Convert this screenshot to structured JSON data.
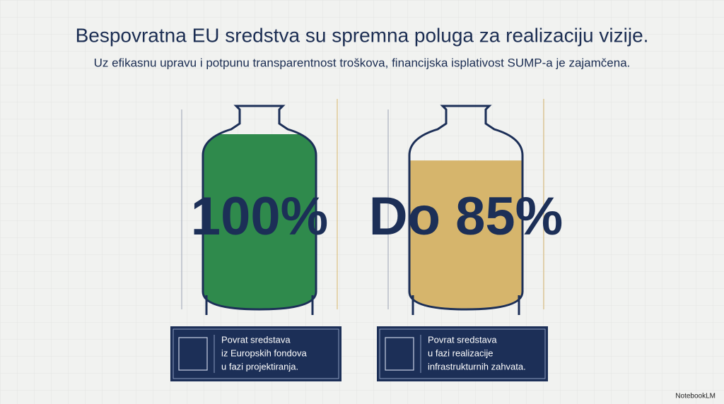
{
  "header": {
    "title": "Bespovratna EU sredstva su spremna poluga za realizaciju vizije.",
    "subtitle": "Uz efikasnu upravu i potpunu transparentnost troškova, financijska isplativost SUMP-a je zajamčena."
  },
  "panels": [
    {
      "value": 100,
      "label": "100%",
      "color": "#2f8a4c",
      "caption": [
        "Povrat sredstava",
        "iz Europskih fondova",
        "u fazi projektiranja."
      ]
    },
    {
      "value": 85,
      "label": "Do 85%",
      "color": "#d6b56c",
      "caption": [
        "Povrat sredstava",
        "u fazi realizacije",
        "infrastrukturnih zahvata."
      ]
    }
  ],
  "watermark": "NotebookLM"
}
